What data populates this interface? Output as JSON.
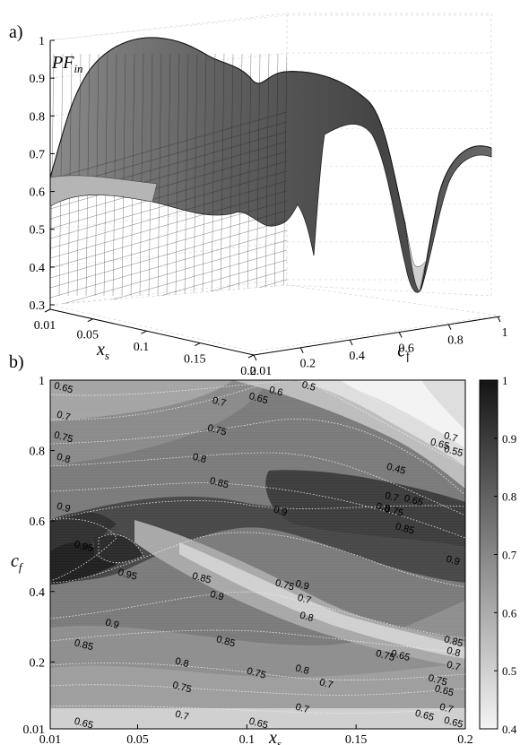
{
  "panels": {
    "a": "a)",
    "b": "b)"
  },
  "chart_data": [
    {
      "type": "surface3d",
      "panel": "a)",
      "zlabel": "PF",
      "zlabel_sub": "in",
      "xlabel": "x",
      "xlabel_sub": "s",
      "ylabel": "c",
      "ylabel_sub": "f",
      "zlim": [
        0.3,
        1
      ],
      "xlim": [
        0.01,
        0.2
      ],
      "ylim": [
        0.01,
        1
      ],
      "z_ticks": [
        "0.3",
        "0.4",
        "0.5",
        "0.6",
        "0.7",
        "0.8",
        "0.9",
        "1"
      ],
      "x_ticks": [
        "0.01",
        "0.05",
        "0.1",
        "0.15",
        "0.2"
      ],
      "y_ticks": [
        "0.01",
        "0.2",
        "0.4",
        "0.6",
        "0.8",
        "1"
      ],
      "grid": true,
      "colormap": "gray"
    },
    {
      "type": "contour",
      "panel": "b)",
      "xlabel": "x",
      "xlabel_sub": "s",
      "ylabel": "c",
      "ylabel_sub": "f",
      "xlim": [
        0.01,
        0.2
      ],
      "ylim": [
        0.01,
        1
      ],
      "x_ticks": [
        "0.01",
        "0.05",
        "0.1",
        "0.15",
        "0.2"
      ],
      "y_ticks": [
        "0.01",
        "0.2",
        "0.4",
        "0.6",
        "0.8",
        "1"
      ],
      "colorbar_ticks": [
        "0.4",
        "0.5",
        "0.6",
        "0.7",
        "0.8",
        "0.9",
        "1"
      ],
      "colorbar_range": [
        0.4,
        1
      ],
      "colormap": "gray",
      "contour_labels": [
        {
          "text": "0.65",
          "x": 0.015,
          "y": 0.97
        },
        {
          "text": "0.7",
          "x": 0.015,
          "y": 0.89
        },
        {
          "text": "0.75",
          "x": 0.015,
          "y": 0.83
        },
        {
          "text": "0.8",
          "x": 0.015,
          "y": 0.77
        },
        {
          "text": "0.9",
          "x": 0.015,
          "y": 0.63
        },
        {
          "text": "0.95",
          "x": 0.025,
          "y": 0.52
        },
        {
          "text": "0.95",
          "x": 0.045,
          "y": 0.44
        },
        {
          "text": "0.7",
          "x": 0.087,
          "y": 0.93
        },
        {
          "text": "0.75",
          "x": 0.086,
          "y": 0.85
        },
        {
          "text": "0.8",
          "x": 0.078,
          "y": 0.77
        },
        {
          "text": "0.85",
          "x": 0.087,
          "y": 0.7
        },
        {
          "text": "0.9",
          "x": 0.115,
          "y": 0.62
        },
        {
          "text": "0.65",
          "x": 0.105,
          "y": 0.94
        },
        {
          "text": "0.6",
          "x": 0.113,
          "y": 0.96
        },
        {
          "text": "0.5",
          "x": 0.128,
          "y": 0.98
        },
        {
          "text": "0.45",
          "x": 0.168,
          "y": 0.74
        },
        {
          "text": "0.7",
          "x": 0.166,
          "y": 0.66
        },
        {
          "text": "0.65",
          "x": 0.176,
          "y": 0.65
        },
        {
          "text": "0.8",
          "x": 0.162,
          "y": 0.63
        },
        {
          "text": "0.75",
          "x": 0.167,
          "y": 0.62
        },
        {
          "text": "0.85",
          "x": 0.172,
          "y": 0.57
        },
        {
          "text": "0.9",
          "x": 0.194,
          "y": 0.48
        },
        {
          "text": "0.7",
          "x": 0.193,
          "y": 0.83
        },
        {
          "text": "0.65",
          "x": 0.188,
          "y": 0.81
        },
        {
          "text": "0.55",
          "x": 0.195,
          "y": 0.79
        },
        {
          "text": "0.85",
          "x": 0.079,
          "y": 0.43
        },
        {
          "text": "0.9",
          "x": 0.086,
          "y": 0.38
        },
        {
          "text": "0.9",
          "x": 0.038,
          "y": 0.3
        },
        {
          "text": "0.85",
          "x": 0.025,
          "y": 0.24
        },
        {
          "text": "0.85",
          "x": 0.09,
          "y": 0.25
        },
        {
          "text": "0.8",
          "x": 0.07,
          "y": 0.19
        },
        {
          "text": "0.75",
          "x": 0.07,
          "y": 0.12
        },
        {
          "text": "0.7",
          "x": 0.07,
          "y": 0.04
        },
        {
          "text": "0.65",
          "x": 0.025,
          "y": 0.01
        },
        {
          "text": "0.65",
          "x": 0.105,
          "y": 0.01
        },
        {
          "text": "0.75",
          "x": 0.104,
          "y": 0.16
        },
        {
          "text": "0.8",
          "x": 0.125,
          "y": 0.17
        },
        {
          "text": "0.7",
          "x": 0.125,
          "y": 0.06
        },
        {
          "text": "0.7",
          "x": 0.136,
          "y": 0.13
        },
        {
          "text": "0.8",
          "x": 0.127,
          "y": 0.32
        },
        {
          "text": "0.7",
          "x": 0.126,
          "y": 0.37
        },
        {
          "text": "0.75",
          "x": 0.117,
          "y": 0.41
        },
        {
          "text": "0.9",
          "x": 0.125,
          "y": 0.41
        },
        {
          "text": "0.75",
          "x": 0.163,
          "y": 0.21
        },
        {
          "text": "0.65",
          "x": 0.17,
          "y": 0.21
        },
        {
          "text": "0.85",
          "x": 0.196,
          "y": 0.25
        },
        {
          "text": "0.8",
          "x": 0.196,
          "y": 0.22
        },
        {
          "text": "0.7",
          "x": 0.197,
          "y": 0.18
        },
        {
          "text": "0.75",
          "x": 0.187,
          "y": 0.14
        },
        {
          "text": "0.65",
          "x": 0.19,
          "y": 0.11
        },
        {
          "text": "0.7",
          "x": 0.191,
          "y": 0.06
        },
        {
          "text": "0.65",
          "x": 0.181,
          "y": 0.04
        },
        {
          "text": "0.65",
          "x": 0.195,
          "y": 0.02
        }
      ]
    }
  ]
}
